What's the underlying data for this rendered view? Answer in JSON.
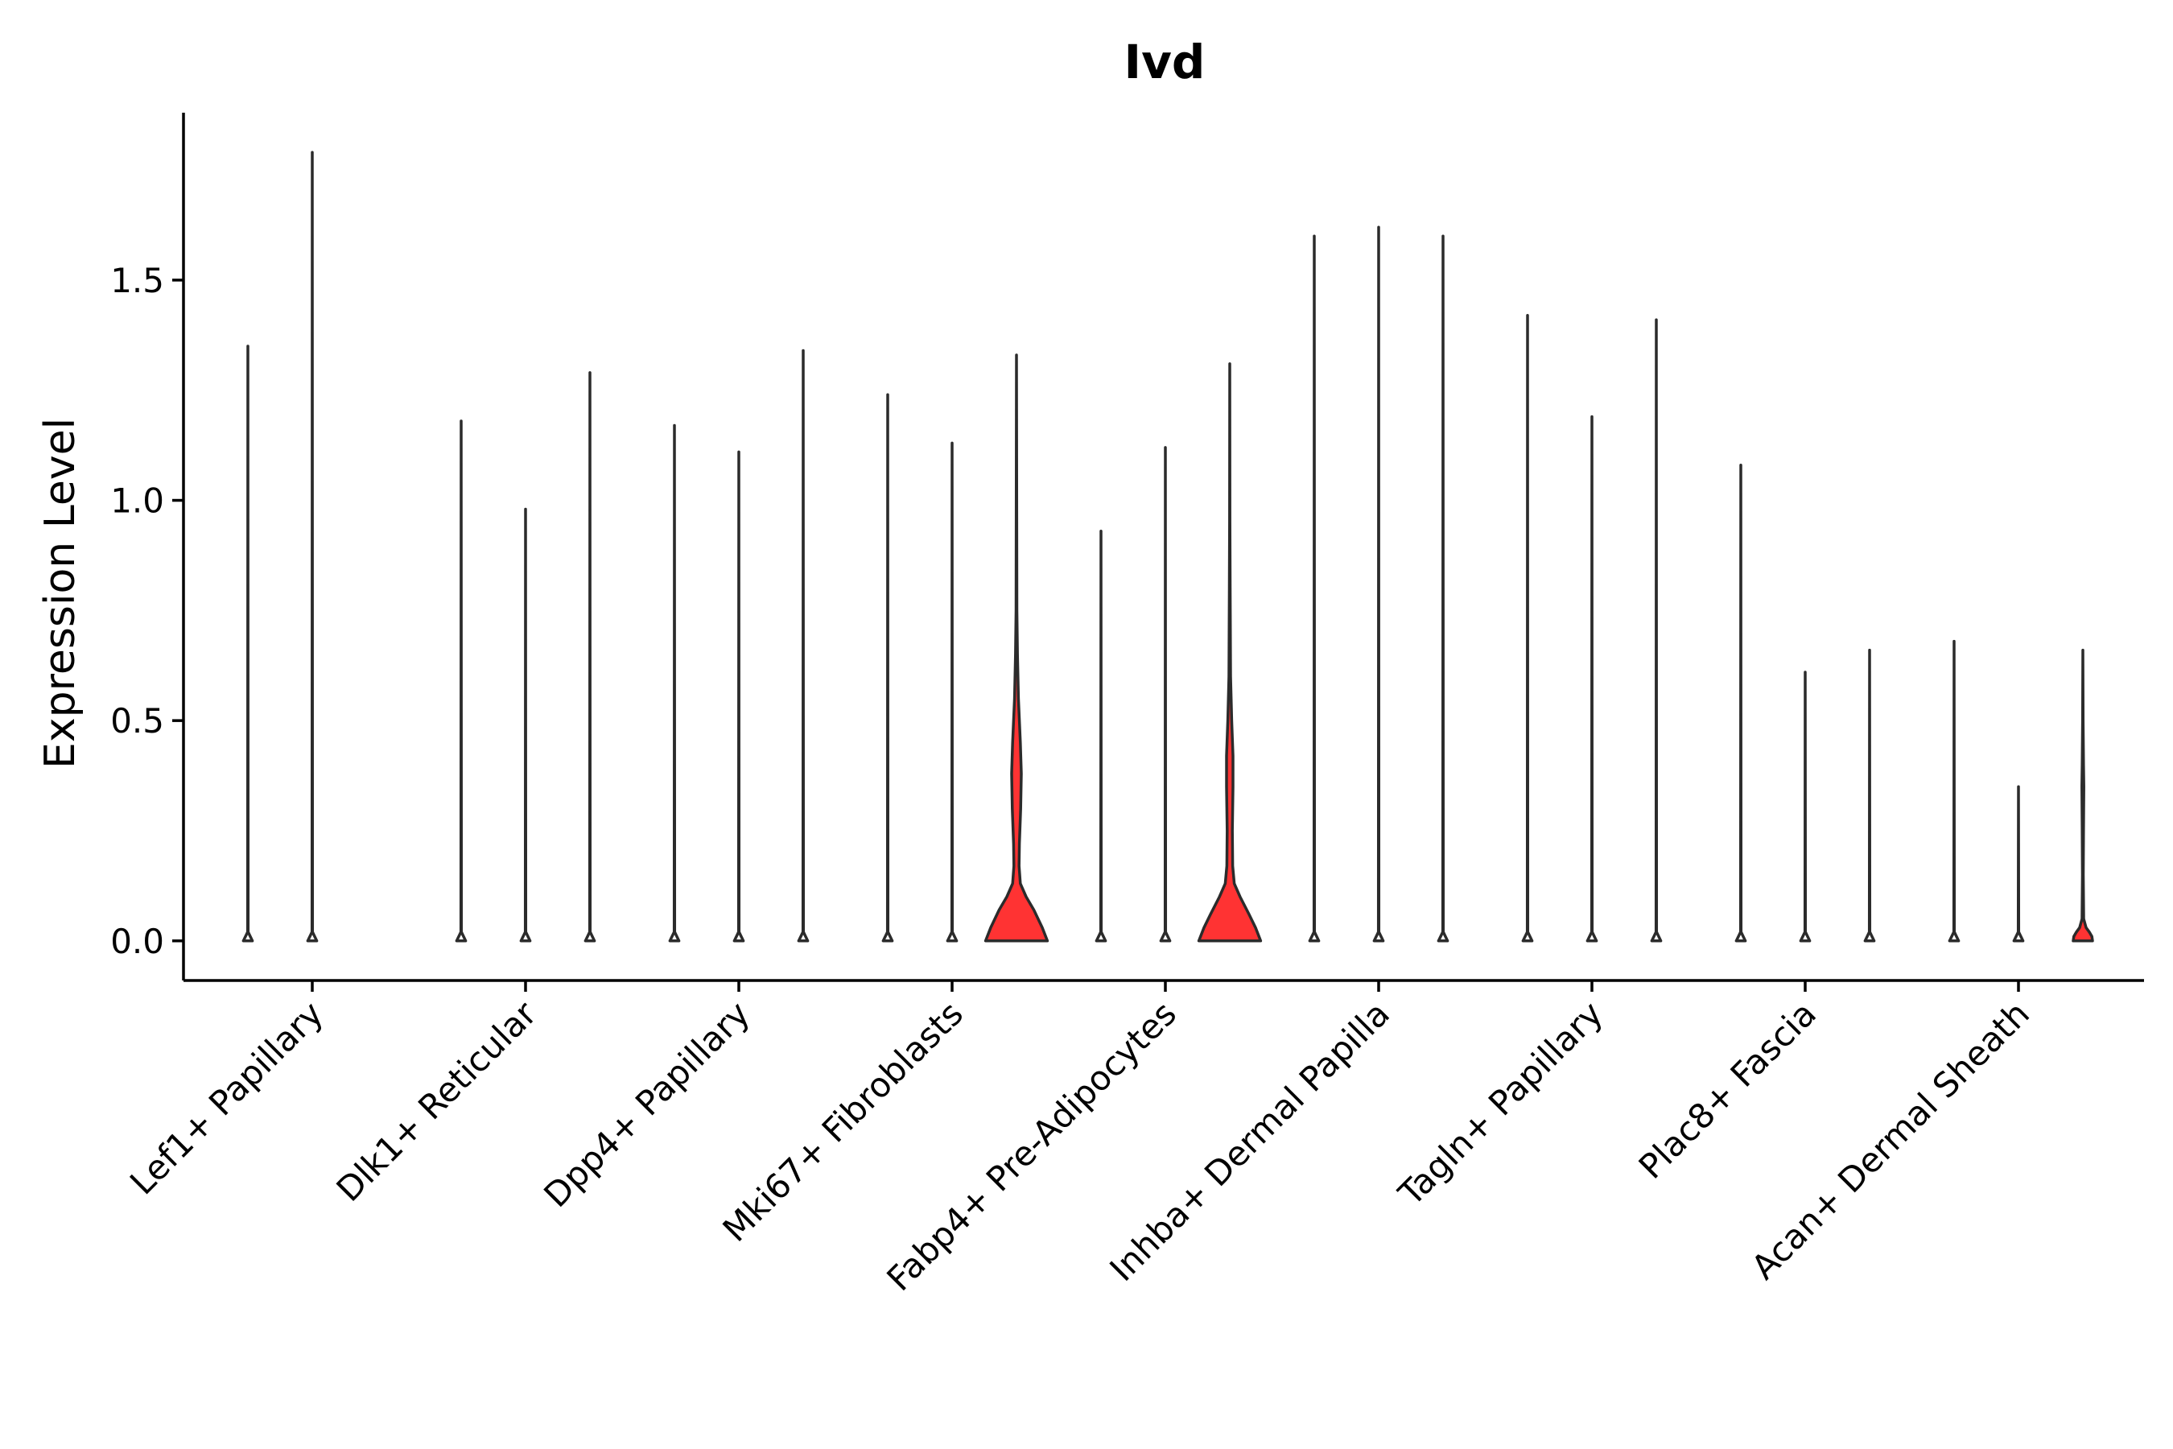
{
  "chart_data": {
    "type": "violin",
    "title": "Ivd",
    "xlabel": "",
    "ylabel": "Expression Level",
    "ylim": [
      -0.09,
      1.88
    ],
    "yticks": [
      0.0,
      0.5,
      1.0,
      1.5
    ],
    "ytick_labels": [
      "0.0",
      "0.5",
      "1.0",
      "1.5"
    ],
    "grid": false,
    "legend": "none",
    "categories": [
      "Lef1+ Papillary",
      "Dlk1+ Reticular",
      "Dpp4+ Papillary",
      "Mki67+ Fibroblasts",
      "Fabp4+ Pre-Adipocytes",
      "Inhba+ Dermal Papilla",
      "Tagln+ Papillary",
      "Plac8+ Fascia",
      "Acan+ Dermal Sheath"
    ],
    "sub_groups_per_category": 3,
    "colors": {
      "filled": "#ff3333",
      "empty": "#ffffff",
      "outline": "#2b2b2b"
    },
    "violins": [
      {
        "category": 0,
        "sub": 0,
        "max": 1.35,
        "filled": false,
        "profile": [
          [
            0.0,
            0.07
          ],
          [
            0.02,
            0.004
          ],
          [
            1.35,
            0.0
          ]
        ]
      },
      {
        "category": 0,
        "sub": 1,
        "max": 1.79,
        "filled": false,
        "profile": [
          [
            0.0,
            0.07
          ],
          [
            0.02,
            0.004
          ],
          [
            1.79,
            0.0
          ]
        ]
      },
      {
        "category": 1,
        "sub": 0,
        "max": 1.18,
        "filled": false,
        "profile": [
          [
            0.0,
            0.07
          ],
          [
            0.02,
            0.004
          ],
          [
            1.18,
            0.0
          ]
        ]
      },
      {
        "category": 1,
        "sub": 1,
        "max": 0.98,
        "filled": false,
        "profile": [
          [
            0.0,
            0.07
          ],
          [
            0.02,
            0.004
          ],
          [
            0.98,
            0.0
          ]
        ]
      },
      {
        "category": 1,
        "sub": 2,
        "max": 1.29,
        "filled": false,
        "profile": [
          [
            0.0,
            0.07
          ],
          [
            0.02,
            0.004
          ],
          [
            1.29,
            0.0
          ]
        ]
      },
      {
        "category": 2,
        "sub": 0,
        "max": 1.17,
        "filled": false,
        "profile": [
          [
            0.0,
            0.07
          ],
          [
            0.02,
            0.004
          ],
          [
            1.17,
            0.0
          ]
        ]
      },
      {
        "category": 2,
        "sub": 1,
        "max": 1.11,
        "filled": false,
        "profile": [
          [
            0.0,
            0.07
          ],
          [
            0.02,
            0.004
          ],
          [
            1.11,
            0.0
          ]
        ]
      },
      {
        "category": 2,
        "sub": 2,
        "max": 1.34,
        "filled": false,
        "profile": [
          [
            0.0,
            0.07
          ],
          [
            0.02,
            0.004
          ],
          [
            1.34,
            0.0
          ]
        ]
      },
      {
        "category": 3,
        "sub": 0,
        "max": 1.24,
        "filled": false,
        "profile": [
          [
            0.0,
            0.07
          ],
          [
            0.02,
            0.004
          ],
          [
            1.24,
            0.0
          ]
        ]
      },
      {
        "category": 3,
        "sub": 1,
        "max": 1.13,
        "filled": false,
        "profile": [
          [
            0.0,
            0.07
          ],
          [
            0.02,
            0.004
          ],
          [
            1.13,
            0.0
          ]
        ]
      },
      {
        "category": 3,
        "sub": 2,
        "max": 1.33,
        "filled": true,
        "profile": [
          [
            0.0,
            0.48
          ],
          [
            0.03,
            0.4
          ],
          [
            0.07,
            0.27
          ],
          [
            0.1,
            0.15
          ],
          [
            0.13,
            0.06
          ],
          [
            0.17,
            0.04
          ],
          [
            0.22,
            0.045
          ],
          [
            0.3,
            0.065
          ],
          [
            0.38,
            0.075
          ],
          [
            0.45,
            0.06
          ],
          [
            0.55,
            0.03
          ],
          [
            0.65,
            0.015
          ],
          [
            0.75,
            0.006
          ],
          [
            1.33,
            0.0
          ]
        ]
      },
      {
        "category": 4,
        "sub": 0,
        "max": 0.93,
        "filled": false,
        "profile": [
          [
            0.0,
            0.07
          ],
          [
            0.02,
            0.004
          ],
          [
            0.93,
            0.0
          ]
        ]
      },
      {
        "category": 4,
        "sub": 1,
        "max": 1.12,
        "filled": false,
        "profile": [
          [
            0.0,
            0.07
          ],
          [
            0.02,
            0.004
          ],
          [
            1.12,
            0.0
          ]
        ]
      },
      {
        "category": 4,
        "sub": 2,
        "max": 1.31,
        "filled": true,
        "profile": [
          [
            0.0,
            0.48
          ],
          [
            0.03,
            0.4
          ],
          [
            0.06,
            0.3
          ],
          [
            0.1,
            0.16
          ],
          [
            0.13,
            0.07
          ],
          [
            0.17,
            0.045
          ],
          [
            0.25,
            0.04
          ],
          [
            0.35,
            0.05
          ],
          [
            0.42,
            0.05
          ],
          [
            0.5,
            0.03
          ],
          [
            0.6,
            0.012
          ],
          [
            0.8,
            0.006
          ],
          [
            0.95,
            0.003
          ],
          [
            1.31,
            0.0
          ]
        ]
      },
      {
        "category": 5,
        "sub": 0,
        "max": 1.6,
        "filled": false,
        "profile": [
          [
            0.0,
            0.07
          ],
          [
            0.02,
            0.004
          ],
          [
            1.6,
            0.0
          ]
        ]
      },
      {
        "category": 5,
        "sub": 1,
        "max": 1.62,
        "filled": false,
        "profile": [
          [
            0.0,
            0.07
          ],
          [
            0.02,
            0.004
          ],
          [
            1.62,
            0.0
          ]
        ]
      },
      {
        "category": 5,
        "sub": 2,
        "max": 1.6,
        "filled": false,
        "profile": [
          [
            0.0,
            0.07
          ],
          [
            0.02,
            0.004
          ],
          [
            1.6,
            0.0
          ]
        ]
      },
      {
        "category": 6,
        "sub": 0,
        "max": 1.42,
        "filled": false,
        "profile": [
          [
            0.0,
            0.07
          ],
          [
            0.02,
            0.004
          ],
          [
            1.42,
            0.0
          ]
        ]
      },
      {
        "category": 6,
        "sub": 1,
        "max": 1.19,
        "filled": false,
        "profile": [
          [
            0.0,
            0.07
          ],
          [
            0.02,
            0.004
          ],
          [
            1.19,
            0.0
          ]
        ]
      },
      {
        "category": 6,
        "sub": 2,
        "max": 1.41,
        "filled": false,
        "profile": [
          [
            0.0,
            0.07
          ],
          [
            0.02,
            0.004
          ],
          [
            1.41,
            0.0
          ]
        ]
      },
      {
        "category": 7,
        "sub": 0,
        "max": 1.08,
        "filled": false,
        "profile": [
          [
            0.0,
            0.07
          ],
          [
            0.02,
            0.004
          ],
          [
            1.08,
            0.0
          ]
        ]
      },
      {
        "category": 7,
        "sub": 1,
        "max": 0.61,
        "filled": false,
        "profile": [
          [
            0.0,
            0.07
          ],
          [
            0.02,
            0.004
          ],
          [
            0.61,
            0.0
          ]
        ]
      },
      {
        "category": 7,
        "sub": 2,
        "max": 0.66,
        "filled": false,
        "profile": [
          [
            0.0,
            0.07
          ],
          [
            0.02,
            0.004
          ],
          [
            0.66,
            0.0
          ]
        ]
      },
      {
        "category": 8,
        "sub": 0,
        "max": 0.68,
        "filled": false,
        "profile": [
          [
            0.0,
            0.07
          ],
          [
            0.02,
            0.004
          ],
          [
            0.68,
            0.0
          ]
        ]
      },
      {
        "category": 8,
        "sub": 1,
        "max": 0.35,
        "filled": false,
        "profile": [
          [
            0.0,
            0.07
          ],
          [
            0.02,
            0.004
          ],
          [
            0.35,
            0.0
          ]
        ]
      },
      {
        "category": 8,
        "sub": 2,
        "max": 0.66,
        "filled": true,
        "profile": [
          [
            0.0,
            0.15
          ],
          [
            0.01,
            0.14
          ],
          [
            0.02,
            0.1
          ],
          [
            0.03,
            0.05
          ],
          [
            0.05,
            0.012
          ],
          [
            0.15,
            0.006
          ],
          [
            0.25,
            0.01
          ],
          [
            0.35,
            0.015
          ],
          [
            0.4,
            0.01
          ],
          [
            0.5,
            0.004
          ],
          [
            0.66,
            0.0
          ]
        ]
      }
    ]
  }
}
